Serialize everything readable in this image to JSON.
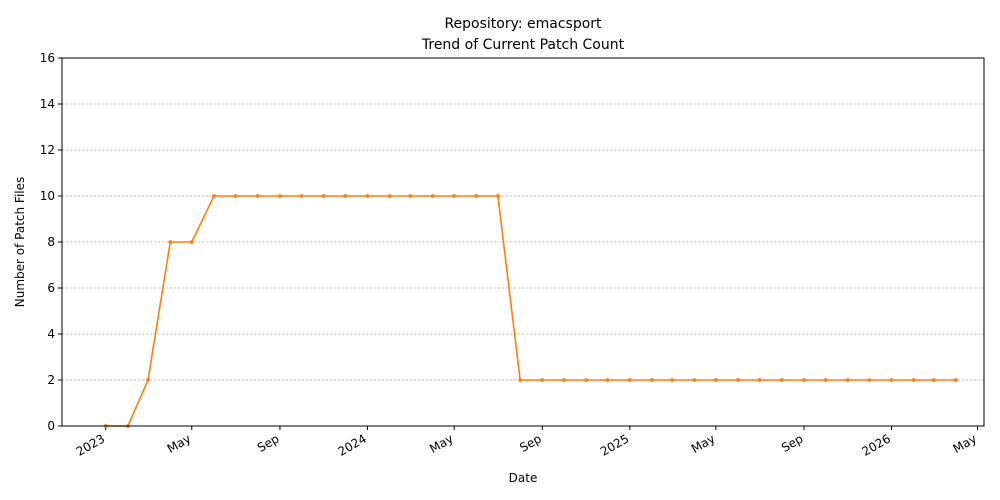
{
  "chart_data": {
    "type": "line",
    "title_line1": "Repository: emacsport",
    "title_line2": "Trend of Current Patch Count",
    "xlabel": "Date",
    "ylabel": "Number of Patch Files",
    "ylim": [
      0,
      16
    ],
    "yticks": [
      0,
      2,
      4,
      6,
      8,
      10,
      12,
      14,
      16
    ],
    "grid": "y-dashed",
    "line_color": "#ff7f0e",
    "x_ticks": [
      {
        "date": "2023-01-01",
        "label": "2023"
      },
      {
        "date": "2023-05-01",
        "label": "May"
      },
      {
        "date": "2023-09-01",
        "label": "Sep"
      },
      {
        "date": "2024-01-01",
        "label": "2024"
      },
      {
        "date": "2024-05-01",
        "label": "May"
      },
      {
        "date": "2024-09-01",
        "label": "Sep"
      },
      {
        "date": "2025-01-01",
        "label": "2025"
      },
      {
        "date": "2025-05-01",
        "label": "May"
      },
      {
        "date": "2025-09-01",
        "label": "Sep"
      },
      {
        "date": "2026-01-01",
        "label": "2026"
      },
      {
        "date": "2026-05-01",
        "label": "May"
      }
    ],
    "x": [
      "2023-01-01",
      "2023-02-01",
      "2023-03-01",
      "2023-04-01",
      "2023-05-01",
      "2023-06-01",
      "2023-07-01",
      "2023-08-01",
      "2023-09-01",
      "2023-10-01",
      "2023-11-01",
      "2023-12-01",
      "2024-01-01",
      "2024-02-01",
      "2024-03-01",
      "2024-04-01",
      "2024-05-01",
      "2024-06-01",
      "2024-07-01",
      "2024-08-01",
      "2024-09-01",
      "2024-10-01",
      "2024-11-01",
      "2024-12-01",
      "2025-01-01",
      "2025-02-01",
      "2025-03-01",
      "2025-04-01",
      "2025-05-01",
      "2025-06-01",
      "2025-07-01",
      "2025-08-01",
      "2025-09-01",
      "2025-10-01",
      "2025-11-01",
      "2025-12-01",
      "2026-01-01",
      "2026-02-01",
      "2026-03-01",
      "2026-04-01"
    ],
    "y": [
      0,
      0,
      2,
      8,
      8,
      10,
      10,
      10,
      10,
      10,
      10,
      10,
      10,
      10,
      10,
      10,
      10,
      10,
      10,
      2,
      2,
      2,
      2,
      2,
      2,
      2,
      2,
      2,
      2,
      2,
      2,
      2,
      2,
      2,
      2,
      2,
      2,
      2,
      2,
      2
    ]
  }
}
